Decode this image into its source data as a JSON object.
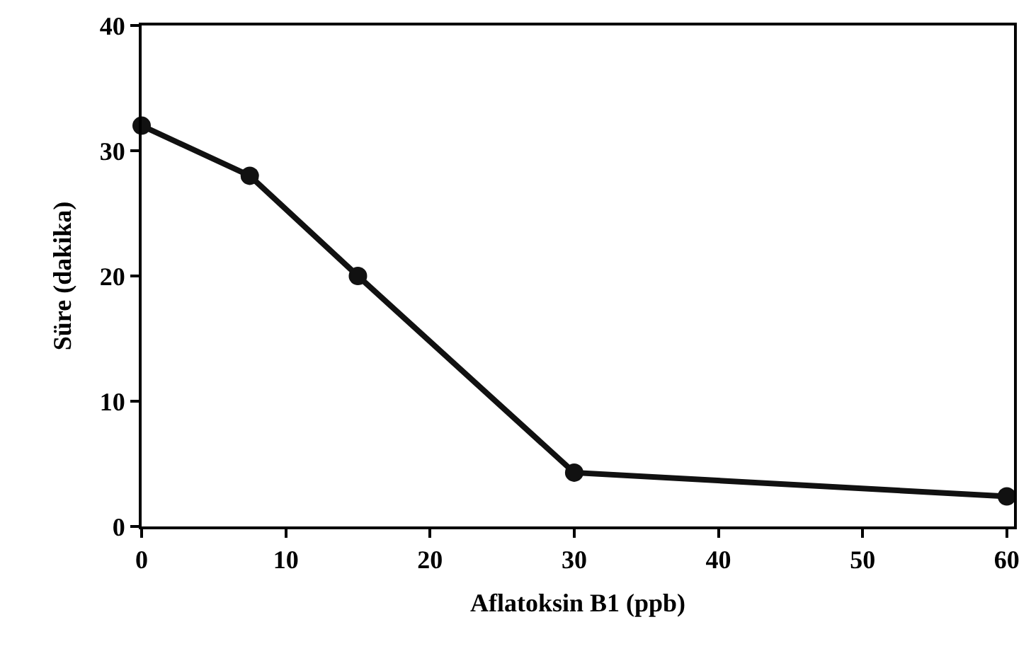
{
  "chart_data": {
    "type": "line",
    "xlabel": "Aflatoksin B1 (ppb)",
    "ylabel": "Süre (dakika)",
    "x": [
      0,
      7.5,
      15,
      30,
      60
    ],
    "series": [
      {
        "color": "#111111",
        "values": [
          32,
          28,
          20,
          4.3,
          2.4
        ]
      }
    ],
    "xlim": [
      0,
      60.5
    ],
    "xticks": [
      0,
      10,
      20,
      30,
      40,
      50,
      60
    ],
    "ylim": [
      0,
      40
    ],
    "yticks": [
      0,
      10,
      20,
      30,
      40
    ],
    "marker": "circle",
    "line_style": "solid"
  }
}
